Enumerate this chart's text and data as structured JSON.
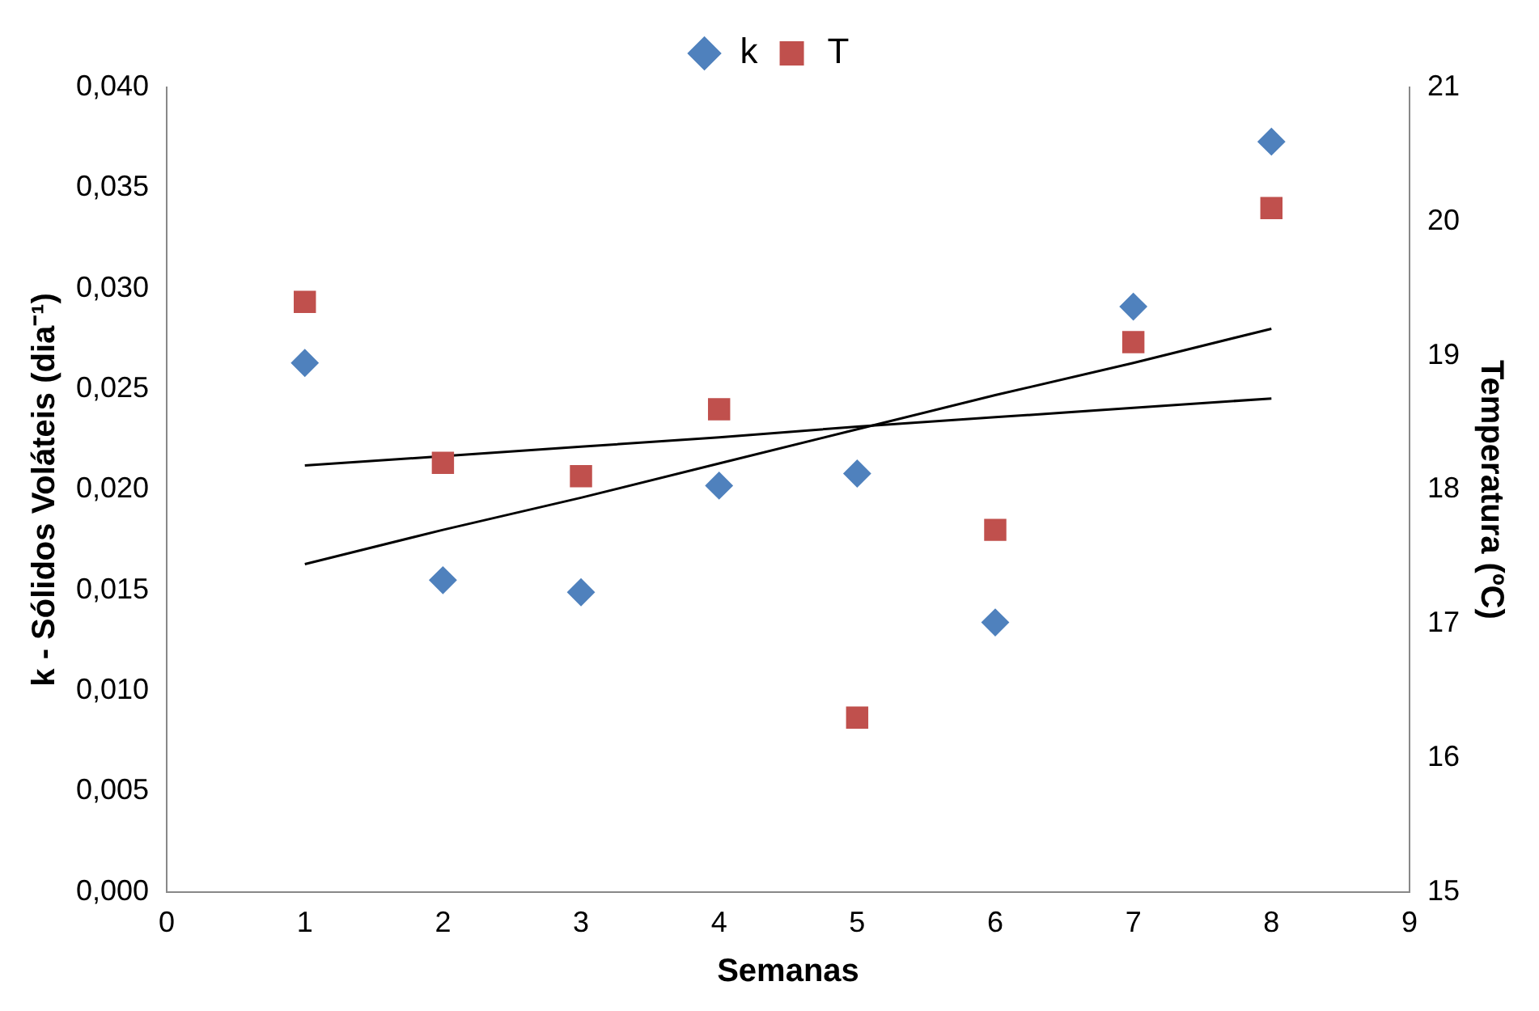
{
  "chart_data": {
    "type": "scatter",
    "xlabel": "Semanas",
    "ylabel": "k - Sólidos Voláteis (dia⁻¹)",
    "y2label": "Temperatura (ºC)",
    "legend": "top",
    "marker": "diamond",
    "grid": false,
    "x": [
      1,
      2,
      3,
      4,
      5,
      6,
      7,
      8
    ],
    "xlim": [
      0,
      9
    ],
    "xticks": [
      0,
      1,
      2,
      3,
      4,
      5,
      6,
      7,
      8,
      9
    ],
    "ylim": [
      0,
      0.04
    ],
    "yticks": [
      {
        "value": 0,
        "label": "0,000"
      },
      {
        "value": 0.005,
        "label": "0,005"
      },
      {
        "value": 0.01,
        "label": "0,010"
      },
      {
        "value": 0.015,
        "label": "0,015"
      },
      {
        "value": 0.02,
        "label": "0,020"
      },
      {
        "value": 0.025,
        "label": "0,025"
      },
      {
        "value": 0.03,
        "label": "0,030"
      },
      {
        "value": 0.035,
        "label": "0,035"
      },
      {
        "value": 0.04,
        "label": "0,040"
      }
    ],
    "y2lim": [
      15,
      21
    ],
    "y2ticks": [
      15,
      16,
      17,
      18,
      19,
      20,
      21
    ],
    "series": [
      {
        "name": "k",
        "color": "#4f81bd",
        "values": [
          0.0263,
          0.0155,
          0.0149,
          0.0202,
          0.0208,
          0.0134,
          0.0291,
          0.0373
        ]
      },
      {
        "name": "T",
        "color": "#c0504d",
        "marker": "square",
        "axis": "y2",
        "values": [
          19.4,
          18.2,
          18.1,
          18.6,
          16.3,
          17.7,
          19.1,
          20.1
        ]
      },
      {
        "type": "line",
        "color": "#000000",
        "marker": "none",
        "values": [
          0.0163,
          0.018,
          0.0196,
          0.0213,
          0.023,
          0.0247,
          0.0263,
          0.028
        ]
      },
      {
        "type": "line",
        "color": "#000000",
        "marker": "none",
        "axis": "y2",
        "values": [
          18.18,
          18.25,
          18.32,
          18.39,
          18.47,
          18.54,
          18.61,
          18.68
        ]
      }
    ]
  }
}
